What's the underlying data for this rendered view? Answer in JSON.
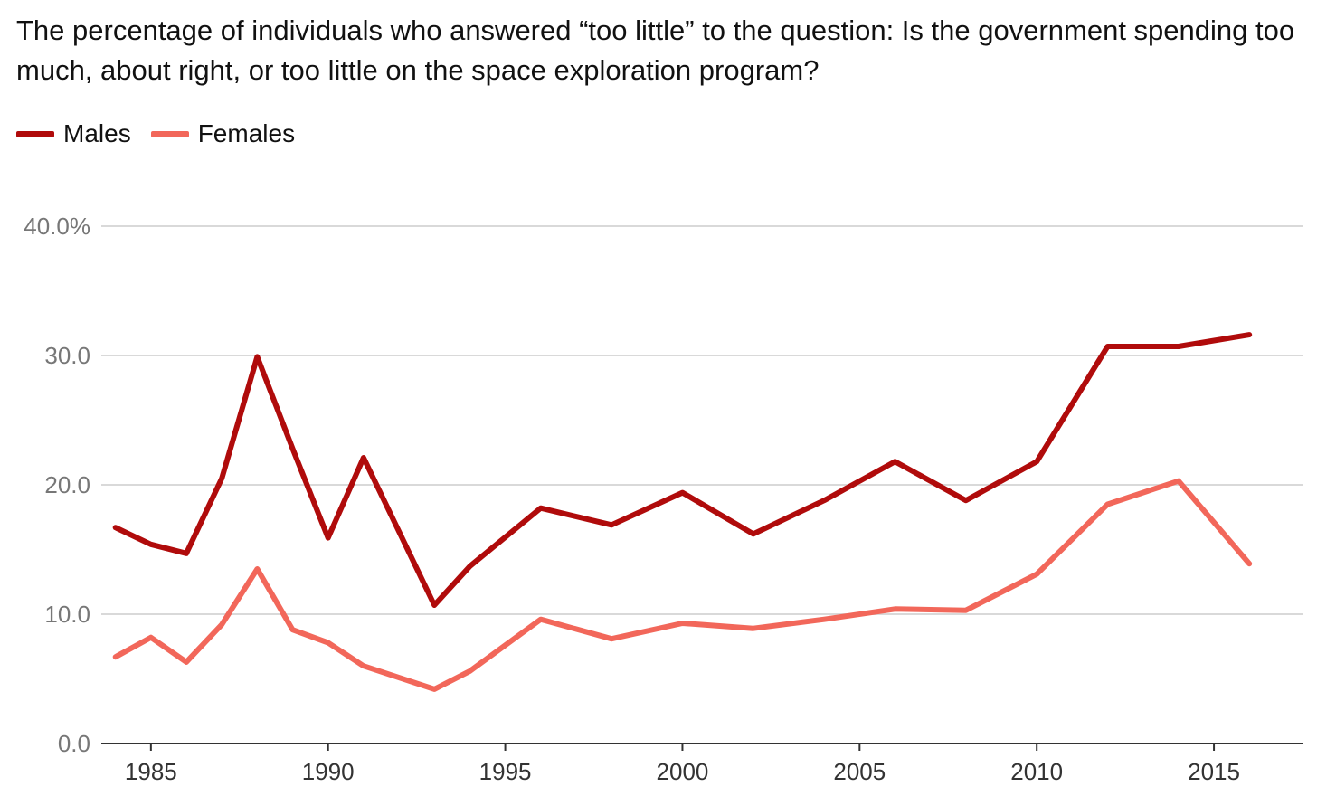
{
  "chart_data": {
    "type": "line",
    "title": "The percentage of individuals who answered “too little” to the question: Is the government spending too much, about right, or too little on the space exploration program?",
    "xlabel": "",
    "ylabel": "",
    "xlim": [
      1983.6,
      2017.5
    ],
    "ylim": [
      0,
      40
    ],
    "y_ticks": [
      0,
      10,
      20,
      30,
      40
    ],
    "y_tick_labels": [
      "0.0",
      "10.0",
      "20.0",
      "30.0",
      "40.0%"
    ],
    "x_ticks": [
      1985,
      1990,
      1995,
      2000,
      2005,
      2010,
      2015
    ],
    "x_tick_labels": [
      "1985",
      "1990",
      "1995",
      "2000",
      "2005",
      "2010",
      "2015"
    ],
    "grid": true,
    "legend_position": "top-left",
    "x": [
      1984,
      1985,
      1986,
      1987,
      1988,
      1989,
      1990,
      1991,
      1993,
      1994,
      1996,
      1998,
      2000,
      2002,
      2004,
      2006,
      2008,
      2010,
      2012,
      2014,
      2016
    ],
    "series": [
      {
        "name": "Males",
        "color": "#b00b0b",
        "values": [
          16.7,
          15.4,
          14.7,
          20.5,
          29.9,
          22.8,
          15.9,
          22.1,
          10.7,
          13.7,
          18.2,
          16.9,
          19.4,
          16.2,
          18.8,
          21.8,
          18.8,
          21.8,
          30.7,
          30.7,
          31.6
        ]
      },
      {
        "name": "Females",
        "color": "#f2675a",
        "values": [
          6.7,
          8.2,
          6.3,
          9.2,
          13.5,
          8.8,
          7.8,
          6.0,
          4.2,
          5.6,
          9.6,
          8.1,
          9.3,
          8.9,
          9.6,
          10.4,
          10.3,
          13.1,
          18.5,
          20.3,
          13.9
        ]
      }
    ]
  }
}
